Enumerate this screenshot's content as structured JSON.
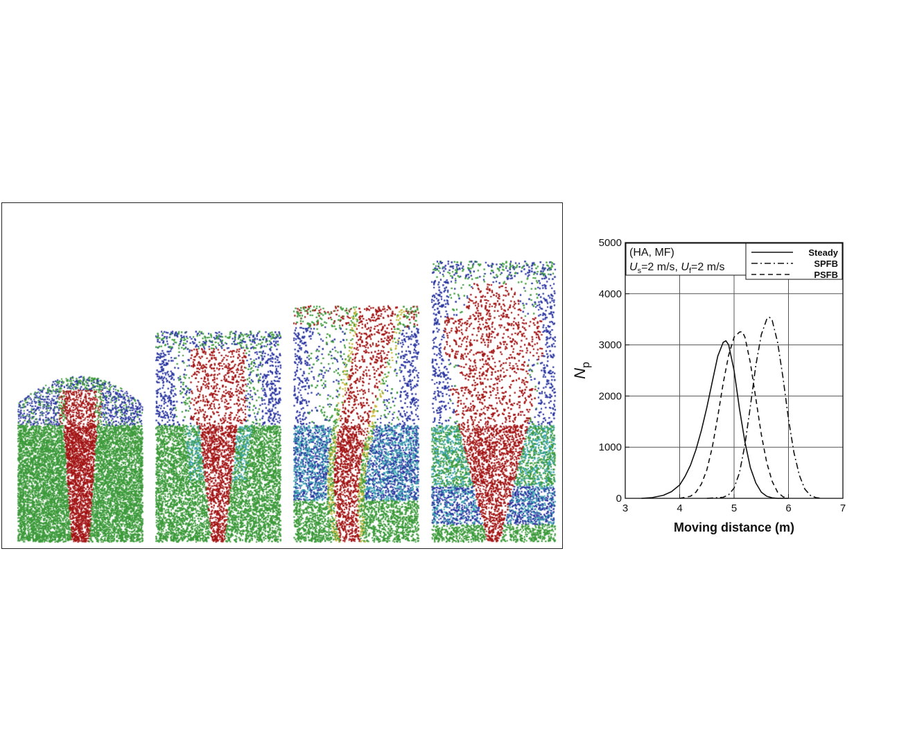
{
  "simulation_panel": {
    "frames": [
      {
        "name": "frame-1",
        "bed_height": 0.365,
        "top_height": 0.52
      },
      {
        "name": "frame-2",
        "bed_height": 0.365,
        "top_height": 0.66
      },
      {
        "name": "frame-3",
        "bed_height": 0.365,
        "top_height": 0.74
      },
      {
        "name": "frame-4",
        "bed_height": 0.365,
        "top_height": 0.88
      }
    ],
    "colors": {
      "green": "#3c9a3a",
      "blue": "#2a36a0",
      "red": "#a21414",
      "cyan": "#3aa3b0",
      "yellow": "#c6b83a"
    }
  },
  "chart_data": {
    "type": "line",
    "xlabel": "Moving distance (m)",
    "ylabel_main": "N",
    "ylabel_sub": "p",
    "xlim": [
      3,
      7
    ],
    "ylim": [
      0,
      5000
    ],
    "x_ticks": [
      "3",
      "4",
      "5",
      "6",
      "7"
    ],
    "y_ticks": [
      "0",
      "1000",
      "2000",
      "3000",
      "4000",
      "5000"
    ],
    "grid": true,
    "annotation": {
      "line1": "(HA, MF)",
      "u_s_sym": "U",
      "u_s_sub": "s",
      "u_s_val": "=2 m/s, ",
      "u_f_sym": "U",
      "u_f_sub": "f",
      "u_f_val": "=2 m/s"
    },
    "series": [
      {
        "name": "Steady",
        "dash": "solid",
        "x": [
          3.3,
          3.5,
          3.7,
          3.85,
          4.0,
          4.1,
          4.2,
          4.3,
          4.4,
          4.5,
          4.6,
          4.7,
          4.8,
          4.85,
          4.9,
          5.0,
          5.1,
          5.2,
          5.3,
          5.4,
          5.5,
          5.6,
          5.7,
          5.8,
          5.9,
          6.0
        ],
        "y": [
          0,
          15,
          60,
          130,
          260,
          430,
          650,
          950,
          1330,
          1780,
          2280,
          2780,
          3050,
          3080,
          3000,
          2500,
          1750,
          1100,
          600,
          300,
          120,
          40,
          10,
          0,
          0,
          0
        ]
      },
      {
        "name": "SPFB",
        "dash": "dashdot",
        "x": [
          4.5,
          4.8,
          4.9,
          5.0,
          5.1,
          5.2,
          5.3,
          5.4,
          5.5,
          5.6,
          5.65,
          5.7,
          5.8,
          5.9,
          6.0,
          6.1,
          6.2,
          6.3,
          6.4,
          6.5,
          6.6
        ],
        "y": [
          0,
          20,
          70,
          200,
          500,
          1050,
          1800,
          2600,
          3200,
          3500,
          3540,
          3480,
          3050,
          2350,
          1550,
          900,
          450,
          180,
          60,
          15,
          0
        ]
      },
      {
        "name": "PSFB",
        "dash": "dashed",
        "x": [
          4.0,
          4.2,
          4.3,
          4.4,
          4.5,
          4.6,
          4.7,
          4.8,
          4.9,
          5.0,
          5.1,
          5.15,
          5.2,
          5.3,
          5.4,
          5.5,
          5.6,
          5.7,
          5.8,
          5.9,
          6.0
        ],
        "y": [
          0,
          40,
          120,
          280,
          560,
          1000,
          1600,
          2250,
          2800,
          3150,
          3250,
          3260,
          3150,
          2650,
          1950,
          1250,
          700,
          330,
          120,
          30,
          0
        ]
      }
    ]
  }
}
